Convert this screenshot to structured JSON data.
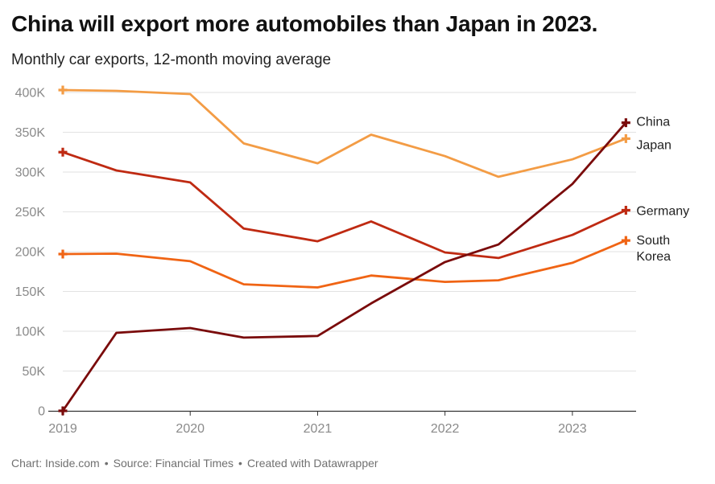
{
  "title": "China will export more automobiles than Japan in 2023.",
  "subtitle": "Monthly car exports, 12-month moving average",
  "footer": {
    "chart_credit": "Chart: Inside.com",
    "source": "Source: Financial Times",
    "created": "Created with Datawrapper",
    "separator": "•"
  },
  "chart_data": {
    "type": "line",
    "title": "China will export more automobiles than Japan in 2023.",
    "subtitle": "Monthly car exports, 12-month moving average",
    "xlabel": "",
    "ylabel": "",
    "x": [
      2019.0,
      2019.42,
      2020.0,
      2020.42,
      2021.0,
      2021.42,
      2022.0,
      2022.42,
      2023.0,
      2023.42
    ],
    "xlim": [
      2019.0,
      2023.5
    ],
    "ylim": [
      0,
      400000
    ],
    "grid": true,
    "legend": "direct labels at line ends (right)",
    "x_ticks": [
      {
        "value": 2019,
        "label": "2019"
      },
      {
        "value": 2020,
        "label": "2020"
      },
      {
        "value": 2021,
        "label": "2021"
      },
      {
        "value": 2022,
        "label": "2022"
      },
      {
        "value": 2023,
        "label": "2023"
      }
    ],
    "y_ticks": [
      {
        "value": 0,
        "label": "0"
      },
      {
        "value": 50000,
        "label": "50K"
      },
      {
        "value": 100000,
        "label": "100K"
      },
      {
        "value": 150000,
        "label": "150K"
      },
      {
        "value": 200000,
        "label": "200K"
      },
      {
        "value": 250000,
        "label": "250K"
      },
      {
        "value": 300000,
        "label": "300K"
      },
      {
        "value": 350000,
        "label": "350K"
      },
      {
        "value": 400000,
        "label": "400K"
      }
    ],
    "series": [
      {
        "name": "Japan",
        "label_lines": [
          "Japan"
        ],
        "color": "#f39c45",
        "values": [
          403000,
          402000,
          398000,
          336000,
          311000,
          347000,
          320000,
          294000,
          316000,
          342000
        ]
      },
      {
        "name": "Germany",
        "label_lines": [
          "Germany"
        ],
        "color": "#bf2a12",
        "values": [
          325000,
          302000,
          287000,
          229000,
          213000,
          238000,
          199000,
          192000,
          221000,
          252000
        ]
      },
      {
        "name": "South Korea",
        "label_lines": [
          "South",
          "Korea"
        ],
        "color": "#f06414",
        "values": [
          197000,
          197500,
          188000,
          159000,
          155000,
          170000,
          162000,
          164000,
          186000,
          214000
        ]
      },
      {
        "name": "China",
        "label_lines": [
          "China"
        ],
        "color": "#7a0b0b",
        "values": [
          0,
          98000,
          104000,
          92000,
          94000,
          135000,
          187000,
          209000,
          285000,
          362000
        ]
      }
    ]
  }
}
